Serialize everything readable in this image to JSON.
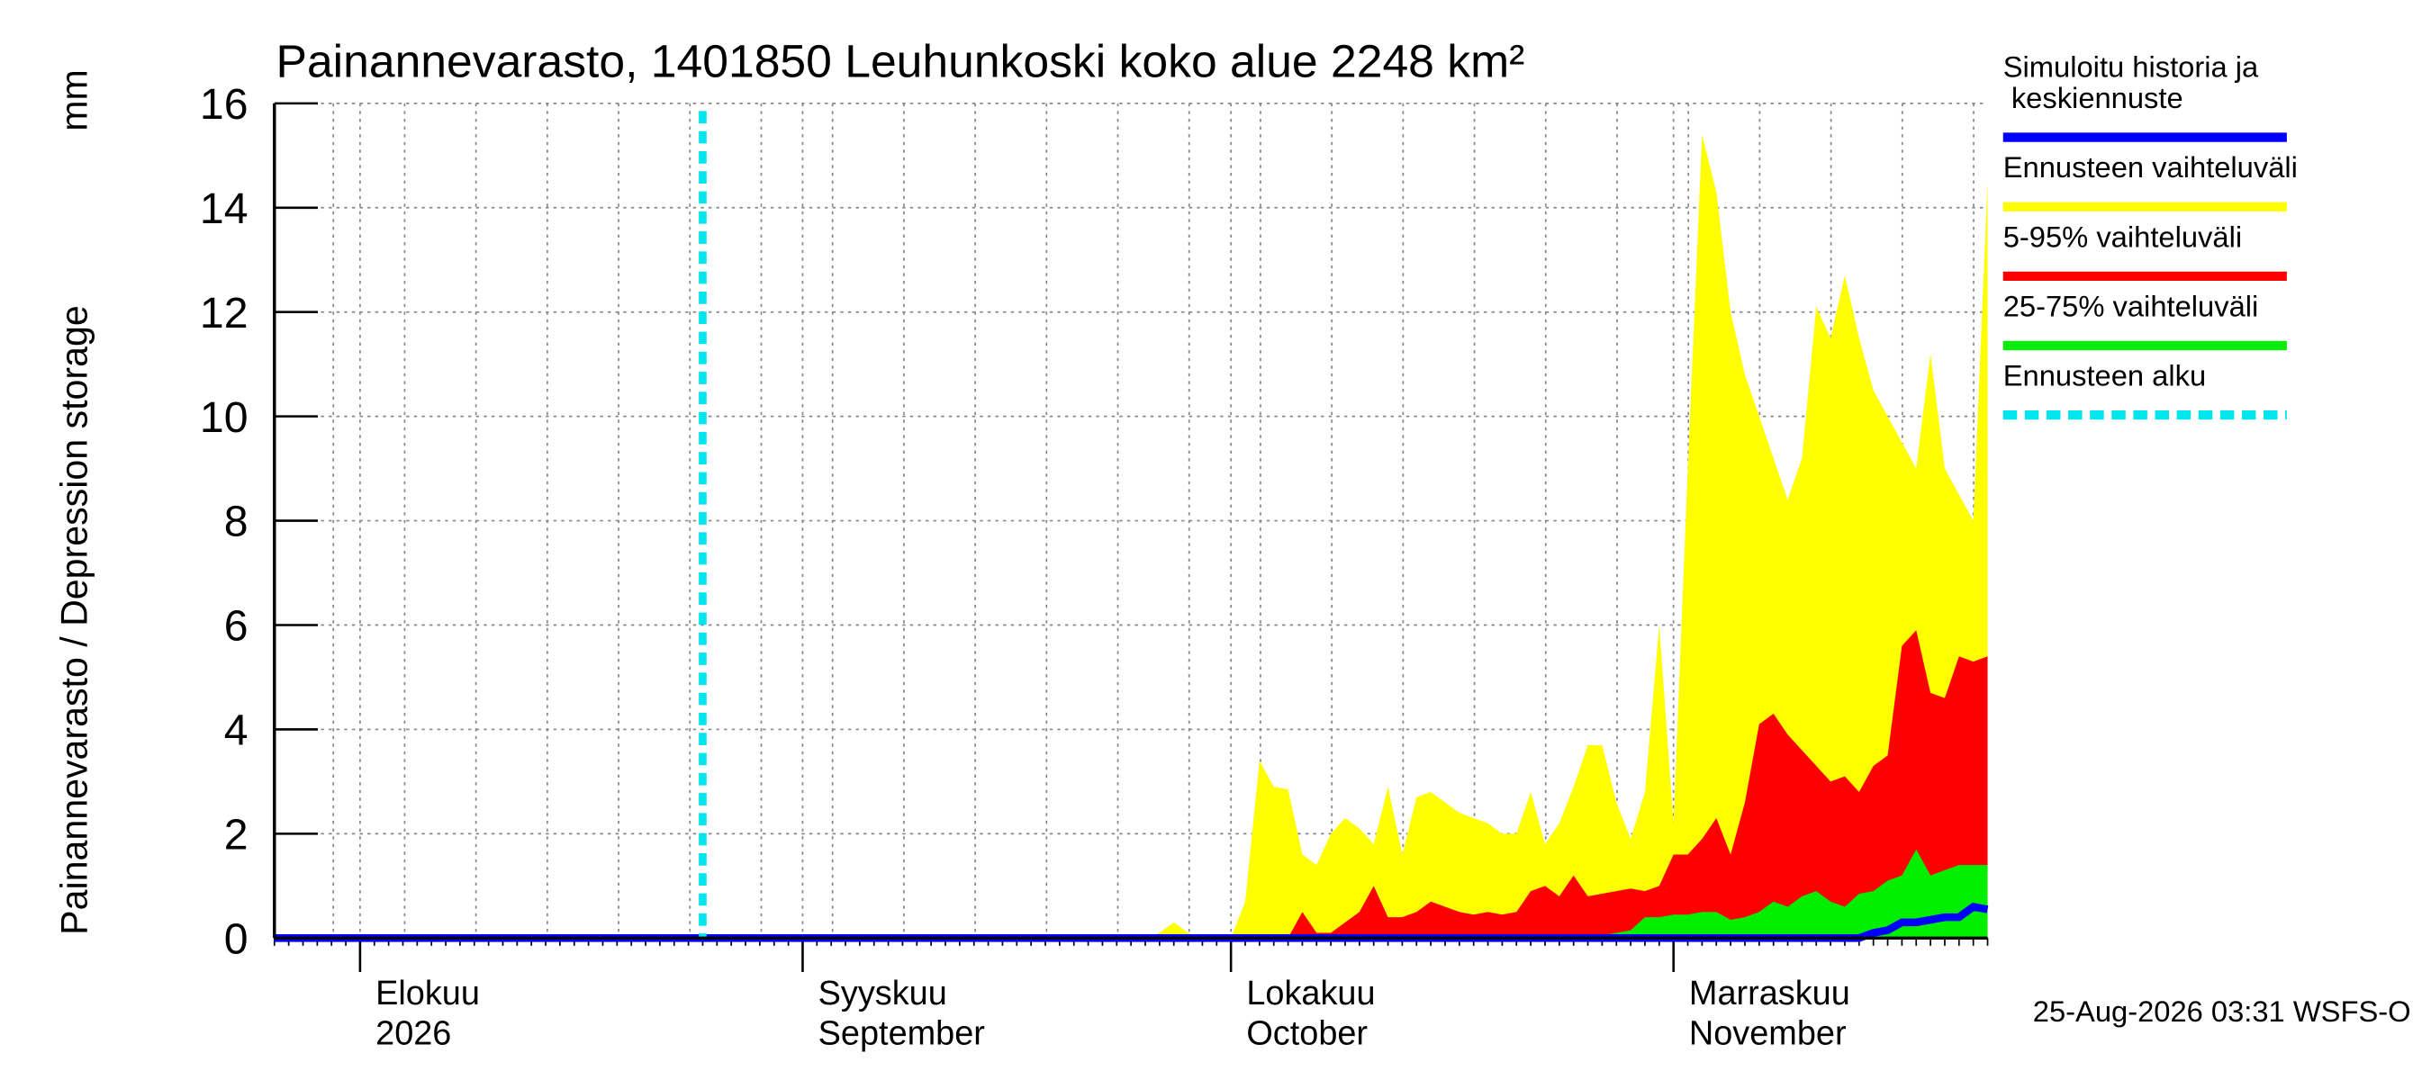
{
  "chart_data": {
    "type": "area",
    "title": "Painannevarasto, 1401850 Leuhunkoski koko alue 2248 km²",
    "y_label": "Painannevarasto / Depression storage",
    "y_unit": "mm",
    "footer": "25-Aug-2026 03:31 WSFS-O",
    "xlim": [
      0,
      120
    ],
    "xticks": [
      {
        "value": 6,
        "label": "Elokuu",
        "sublabel": "2026"
      },
      {
        "value": 37,
        "label": "Syyskuu",
        "sublabel": "September"
      },
      {
        "value": 67,
        "label": "Lokakuu",
        "sublabel": "October"
      },
      {
        "value": 98,
        "label": "Marraskuu",
        "sublabel": "November"
      }
    ],
    "ylim": [
      0,
      16
    ],
    "yticks": [
      0,
      2,
      4,
      6,
      8,
      10,
      12,
      14,
      16
    ],
    "grid": true,
    "legend": "right",
    "x": [
      0,
      60,
      61,
      62,
      63,
      64,
      65,
      66,
      67,
      68,
      69,
      70,
      71,
      72,
      73,
      74,
      75,
      76,
      77,
      78,
      79,
      80,
      81,
      82,
      83,
      84,
      85,
      86,
      87,
      88,
      89,
      90,
      91,
      92,
      93,
      94,
      95,
      96,
      97,
      98,
      99,
      100,
      101,
      102,
      103,
      104,
      105,
      106,
      107,
      108,
      109,
      110,
      111,
      112,
      113,
      114,
      115,
      116,
      117,
      118,
      119,
      120
    ],
    "series": [
      {
        "name": "Ennusteen vaihteluväli",
        "color": "#ffff00",
        "kind": "area",
        "values": [
          0,
          0,
          0,
          0.1,
          0.3,
          0.1,
          0,
          0,
          0,
          0.7,
          3.4,
          2.9,
          2.85,
          1.6,
          1.4,
          2.0,
          2.3,
          2.1,
          1.8,
          2.9,
          1.6,
          2.7,
          2.8,
          2.6,
          2.4,
          2.3,
          2.2,
          2.0,
          2.0,
          2.8,
          1.8,
          2.2,
          2.9,
          3.7,
          3.7,
          2.6,
          1.9,
          2.8,
          6.0,
          2.2,
          9.0,
          15.4,
          14.3,
          12.0,
          10.8,
          10.0,
          9.2,
          8.4,
          9.2,
          12.1,
          11.5,
          12.7,
          11.5,
          10.5,
          10.0,
          9.5,
          9.0,
          11.2,
          9.0,
          8.5,
          8.0,
          14.5
        ]
      },
      {
        "name": "5-95% vaihteluväli",
        "color": "#ff0000",
        "kind": "area",
        "values": [
          0,
          0,
          0,
          0,
          0,
          0,
          0,
          0,
          0,
          0,
          0,
          0,
          0,
          0.5,
          0.1,
          0.1,
          0.3,
          0.5,
          1.0,
          0.4,
          0.4,
          0.5,
          0.7,
          0.6,
          0.5,
          0.45,
          0.5,
          0.45,
          0.5,
          0.9,
          1.0,
          0.8,
          1.2,
          0.8,
          0.85,
          0.9,
          0.95,
          0.9,
          1.0,
          1.6,
          1.6,
          1.9,
          2.3,
          1.6,
          2.6,
          4.1,
          4.3,
          3.9,
          3.6,
          3.3,
          3.0,
          3.1,
          2.8,
          3.3,
          3.5,
          5.6,
          5.9,
          4.7,
          4.6,
          5.4,
          5.3,
          5.4
        ]
      },
      {
        "name": "25-75% vaihteluväli",
        "color": "#00ee00",
        "kind": "area",
        "values": [
          0,
          0,
          0,
          0,
          0,
          0,
          0,
          0,
          0,
          0,
          0,
          0,
          0,
          0,
          0,
          0,
          0,
          0,
          0,
          0,
          0,
          0,
          0,
          0,
          0,
          0,
          0,
          0,
          0,
          0,
          0,
          0,
          0,
          0,
          0.05,
          0.1,
          0.15,
          0.4,
          0.4,
          0.45,
          0.45,
          0.5,
          0.5,
          0.35,
          0.4,
          0.5,
          0.7,
          0.6,
          0.8,
          0.9,
          0.7,
          0.6,
          0.85,
          0.9,
          1.1,
          1.2,
          1.7,
          1.2,
          1.3,
          1.4,
          1.4,
          1.4
        ]
      },
      {
        "name": "Simuloitu historia ja keskiennuste",
        "color": "#0000ff",
        "kind": "line",
        "values": [
          0,
          0,
          0,
          0,
          0,
          0,
          0,
          0,
          0,
          0,
          0,
          0,
          0,
          0,
          0,
          0,
          0,
          0,
          0,
          0,
          0,
          0,
          0,
          0,
          0,
          0,
          0,
          0,
          0,
          0,
          0,
          0,
          0,
          0,
          0,
          0,
          0,
          0,
          0,
          0,
          0,
          0,
          0,
          0,
          0,
          0,
          0,
          0,
          0,
          0,
          0,
          0,
          0,
          0.1,
          0.15,
          0.3,
          0.3,
          0.35,
          0.4,
          0.4,
          0.6,
          0.55
        ]
      }
    ],
    "forecast_start": {
      "name": "Ennusteen alku",
      "color": "#00e5ee",
      "x": 30
    }
  }
}
